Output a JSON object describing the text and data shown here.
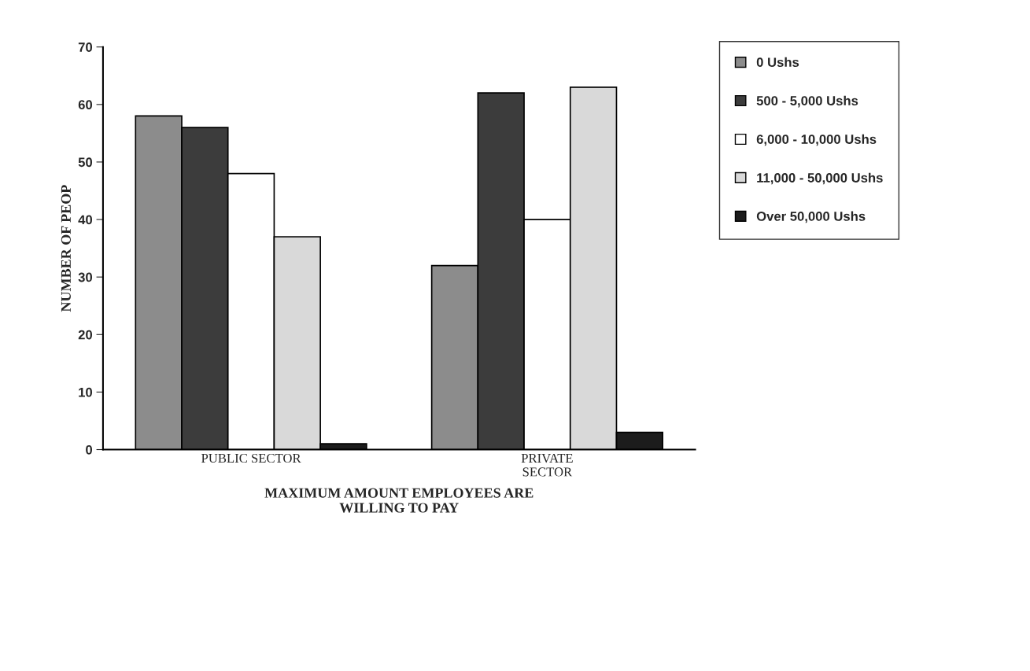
{
  "chart_data": {
    "type": "bar",
    "categories": [
      "PUBLIC SECTOR",
      "PRIVATE\nSECTOR"
    ],
    "xlabel": "MAXIMUM AMOUNT EMPLOYEES ARE\nWILLING TO PAY",
    "ylabel": "NUMBER OF PEOP",
    "series": [
      {
        "name": "0 Ushs",
        "color": "#8c8c8c",
        "values": [
          58,
          32
        ]
      },
      {
        "name": "500 - 5,000 Ushs",
        "color": "#3c3c3c",
        "values": [
          56,
          62
        ]
      },
      {
        "name": "6,000 - 10,000 Ushs",
        "color": "#ffffff",
        "values": [
          48,
          40
        ]
      },
      {
        "name": "11,000 - 50,000 Ushs",
        "color": "#d9d9d9",
        "values": [
          37,
          63
        ]
      },
      {
        "name": "Over 50,000 Ushs",
        "color": "#1c1c1c",
        "values": [
          1,
          3
        ]
      }
    ],
    "ylim": [
      0,
      70
    ],
    "yticks": [
      0,
      10,
      20,
      30,
      40,
      50,
      60,
      70
    ],
    "grid": false,
    "legend": "top right"
  }
}
